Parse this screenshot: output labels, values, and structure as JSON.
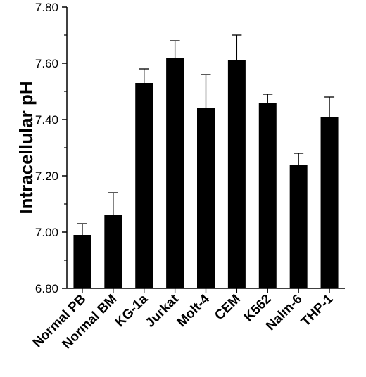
{
  "chart_data": {
    "type": "bar",
    "title": "",
    "xlabel": "",
    "ylabel": "Intracellular pH",
    "ylim": [
      6.8,
      7.8
    ],
    "yticks": [
      "6.80",
      "7.00",
      "7.20",
      "7.40",
      "7.60",
      "7.80"
    ],
    "grid": false,
    "legend": "none",
    "bar_color": "#000000",
    "categories": [
      "Normal PB",
      "Normal BM",
      "KG-1a",
      "Jurkat",
      "Molt-4",
      "CEM",
      "K562",
      "Nalm-6",
      "THP-1"
    ],
    "values": [
      6.99,
      7.06,
      7.53,
      7.62,
      7.44,
      7.61,
      7.46,
      7.24,
      7.41
    ],
    "error_upper": [
      0.04,
      0.08,
      0.05,
      0.06,
      0.12,
      0.09,
      0.03,
      0.04,
      0.07
    ]
  }
}
